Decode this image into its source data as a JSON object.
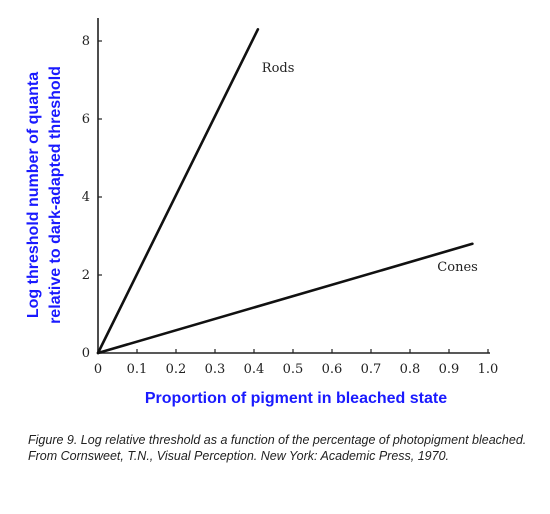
{
  "chart_data": {
    "type": "line",
    "xlabel": "Proportion of pigment in bleached state",
    "ylabel_line1": "Log threshold number of quanta",
    "ylabel_line2": "relative to dark-adapted threshold",
    "xlim": [
      0,
      1.0
    ],
    "ylim": [
      0,
      9
    ],
    "xticks": [
      "0",
      "0.1",
      "0.2",
      "0.3",
      "0.4",
      "0.5",
      "0.6",
      "0.7",
      "0.8",
      "0.9",
      "1.0"
    ],
    "yticks": [
      "0",
      "2",
      "4",
      "6",
      "8"
    ],
    "grid": false,
    "series": [
      {
        "name": "Rods",
        "x": [
          0,
          0.41
        ],
        "y": [
          0,
          8.3
        ],
        "label_at": [
          0.42,
          7.2
        ]
      },
      {
        "name": "Cones",
        "x": [
          0,
          0.96
        ],
        "y": [
          0,
          2.8
        ],
        "label_at": [
          0.87,
          2.1
        ]
      }
    ],
    "line_color": "#111111",
    "axis_title_color": "#1a1aff"
  },
  "caption": "Figure 9. Log relative threshold as a function of the percentage of photopigment bleached. From Cornsweet, T.N., Visual Perception. New York: Academic Press, 1970."
}
